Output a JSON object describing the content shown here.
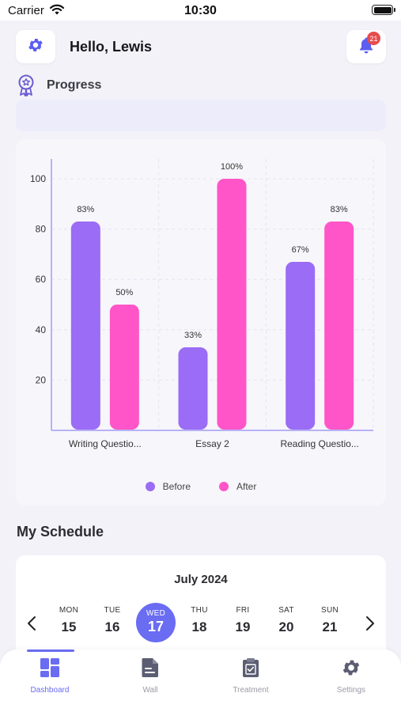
{
  "status_bar": {
    "carrier": "Carrier",
    "time": "10:30"
  },
  "header": {
    "greeting": "Hello, Lewis",
    "notification_count": "21"
  },
  "progress": {
    "label": "Progress"
  },
  "chart_data": {
    "type": "bar",
    "categories": [
      "Writing Questio...",
      "Essay 2",
      "Reading Questio..."
    ],
    "series": [
      {
        "name": "Before",
        "values": [
          83,
          33,
          67
        ],
        "labels": [
          "83%",
          "33%",
          "67%"
        ],
        "color": "#9b6cf5"
      },
      {
        "name": "After",
        "values": [
          50,
          100,
          83
        ],
        "labels": [
          "50%",
          "100%",
          "83%"
        ],
        "color": "#ff55c8"
      }
    ],
    "ylim": [
      0,
      100
    ],
    "yticks": [
      20,
      40,
      60,
      80,
      100
    ],
    "ytick_labels": [
      "20",
      "40",
      "60",
      "80",
      "100"
    ],
    "grid": true,
    "legend_position": "bottom",
    "title": "",
    "xlabel": "",
    "ylabel": ""
  },
  "schedule": {
    "title": "My Schedule",
    "month": "July 2024",
    "days": [
      {
        "name": "MON",
        "num": "15"
      },
      {
        "name": "TUE",
        "num": "16"
      },
      {
        "name": "WED",
        "num": "17",
        "selected": true
      },
      {
        "name": "THU",
        "num": "18"
      },
      {
        "name": "FRI",
        "num": "19"
      },
      {
        "name": "SAT",
        "num": "20"
      },
      {
        "name": "SUN",
        "num": "21"
      }
    ]
  },
  "tabs": [
    {
      "label": "Dashboard",
      "icon": "dashboard-icon",
      "active": true
    },
    {
      "label": "Wall",
      "icon": "document-icon",
      "active": false
    },
    {
      "label": "Treatment",
      "icon": "clipboard-icon",
      "active": false
    },
    {
      "label": "Settings",
      "icon": "gear-icon",
      "active": false
    }
  ],
  "colors": {
    "accent": "#6a6cf2",
    "before": "#9b6cf5",
    "after": "#ff55c8",
    "badge": "#e74c4c"
  }
}
